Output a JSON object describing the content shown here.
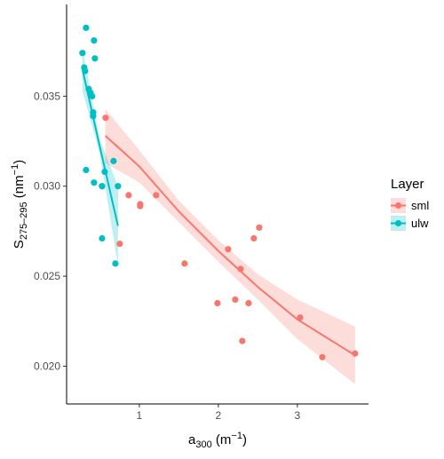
{
  "chart_data": {
    "type": "scatter",
    "x_label": [
      "a",
      "300",
      " (m",
      "−1",
      ")"
    ],
    "y_label": [
      "S",
      "275–295",
      " (nm",
      "−1",
      ")"
    ],
    "legend_title": "Layer",
    "legend": "right",
    "xlim": [
      0.08,
      3.9
    ],
    "xticks": [
      1,
      2,
      3
    ],
    "ylim": [
      0.0179,
      0.0401
    ],
    "yticks": [
      {
        "value": 0.02,
        "label": "0.020"
      },
      0.025,
      {
        "value": 0.03,
        "label": "0.030"
      },
      0.035
    ],
    "series": [
      {
        "name": "sml",
        "color": "#F8766D",
        "x": [
          0.573,
          0.528,
          0.753,
          0.865,
          1.011,
          1.011,
          1.213,
          1.573,
          1.989,
          2.124,
          2.213,
          2.281,
          2.382,
          2.449,
          2.517,
          2.303,
          3.034,
          3.315,
          3.73
        ],
        "values": [
          0.0338,
          0.03,
          0.0268,
          0.0295,
          0.029,
          0.0289,
          0.0295,
          0.0257,
          0.0235,
          0.0265,
          0.0237,
          0.0254,
          0.0235,
          0.0271,
          0.0277,
          0.0214,
          0.0227,
          0.0205,
          0.0207
        ],
        "fit": {
          "x": [
            0.57,
            1.0,
            1.5,
            2.0,
            2.5,
            3.0,
            3.73
          ],
          "y": [
            0.0328,
            0.0311,
            0.0286,
            0.0264,
            0.0244,
            0.0226,
            0.0206
          ],
          "lower": [
            0.0313,
            0.0302,
            0.028,
            0.0258,
            0.0237,
            0.0215,
            0.019
          ],
          "upper": [
            0.0343,
            0.032,
            0.0292,
            0.027,
            0.0251,
            0.0237,
            0.0222
          ]
        }
      },
      {
        "name": "ulw",
        "color": "#00BFC4",
        "x": [
          0.326,
          0.281,
          0.427,
          0.438,
          0.303,
          0.315,
          0.36,
          0.382,
          0.404,
          0.416,
          0.416,
          0.326,
          0.427,
          0.562,
          0.674,
          0.528,
          0.73,
          0.528,
          0.697
        ],
        "values": [
          0.0388,
          0.0374,
          0.0381,
          0.0371,
          0.0366,
          0.0364,
          0.0354,
          0.0352,
          0.035,
          0.0341,
          0.0339,
          0.0309,
          0.0302,
          0.0308,
          0.0314,
          0.03,
          0.03,
          0.0271,
          0.0257
        ],
        "fit": {
          "x": [
            0.28,
            0.5,
            0.73
          ],
          "y": [
            0.0365,
            0.0322,
            0.0278
          ],
          "lower": [
            0.0353,
            0.0318,
            0.0256
          ],
          "upper": [
            0.0377,
            0.0326,
            0.03
          ]
        }
      }
    ]
  }
}
